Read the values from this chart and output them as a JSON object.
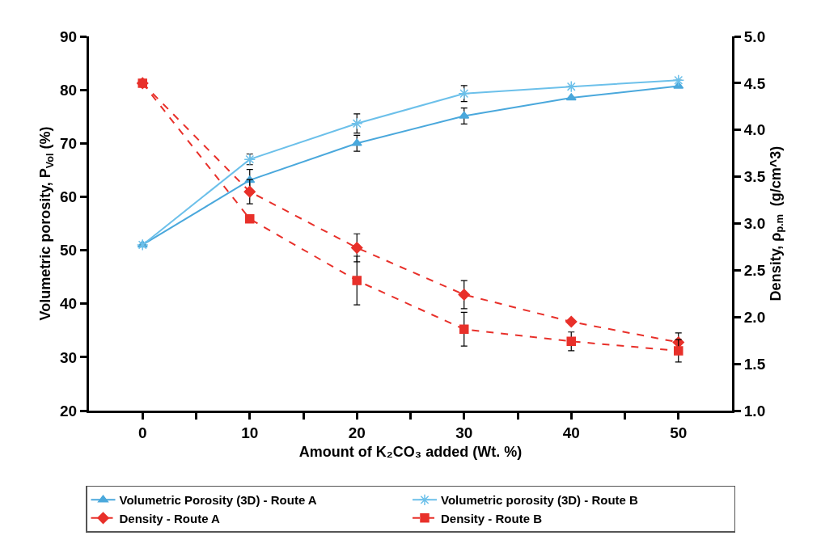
{
  "chart_data": {
    "type": "line",
    "xlabel": "Amount of K₂CO₃ added (Wt. %)",
    "ylabel": "Volumetric porosity, P$_{Vol}$ (%)",
    "y2label": "Density, ρ$_{p.m}$  (g/cm^3)",
    "x": [
      0,
      10,
      20,
      30,
      40,
      50
    ],
    "series": [
      {
        "name": "Volumetric Porosity (3D) - Route A",
        "color": "#4aa8dc",
        "marker": "triangle",
        "line_style": "solid",
        "values": [
          51,
          63.1,
          70,
          75.1,
          78.5,
          80.7
        ],
        "errors": [
          null,
          2,
          1.5,
          1.5,
          null,
          null
        ]
      },
      {
        "name": "Volumetric porosity (3D) - Route B",
        "color": "#6cc0ea",
        "marker": "cross",
        "line_style": "solid",
        "values": [
          51,
          67,
          73.7,
          79.3,
          80.6,
          81.8
        ],
        "errors": [
          null,
          1,
          1.8,
          1.5,
          null,
          null
        ]
      },
      {
        "name": "Density - Route A",
        "color": "#e8302a",
        "marker": "diamond",
        "line_style": "dashed",
        "axis": "y2",
        "values": [
          4.5,
          3.34,
          2.74,
          2.24,
          1.95,
          1.73
        ],
        "errors": [
          null,
          0.13,
          0.15,
          0.15,
          null,
          0.1
        ]
      },
      {
        "name": "Density - Route B",
        "color": "#e8302a",
        "marker": "square",
        "line_style": "dashed",
        "axis": "y2",
        "values": [
          4.5,
          3.05,
          2.39,
          1.87,
          1.74,
          1.64
        ],
        "errors": [
          null,
          null,
          0.26,
          0.18,
          0.1,
          0.12
        ]
      }
    ],
    "xlim": [
      -5,
      55
    ],
    "xticks": [
      0,
      {
        "value": 5,
        "label": null
      },
      10,
      {
        "value": 15,
        "label": null
      },
      20,
      {
        "value": 25,
        "label": null
      },
      30,
      {
        "value": 35,
        "label": null
      },
      40,
      {
        "value": 45,
        "label": null
      },
      50
    ],
    "ylim": [
      20,
      90
    ],
    "yticks": [
      20,
      30,
      40,
      50,
      60,
      70,
      80,
      90
    ],
    "y2lim": [
      1,
      5
    ],
    "y2ticks": [
      {
        "value": 1,
        "label": "1.0"
      },
      1.5,
      {
        "value": 2,
        "label": "2.0"
      },
      2.5,
      {
        "value": 3,
        "label": "3.0"
      },
      3.5,
      {
        "value": 4,
        "label": "4.0"
      },
      4.5,
      {
        "value": 5,
        "label": "5.0"
      }
    ],
    "grid": false,
    "legend": "bottom"
  }
}
